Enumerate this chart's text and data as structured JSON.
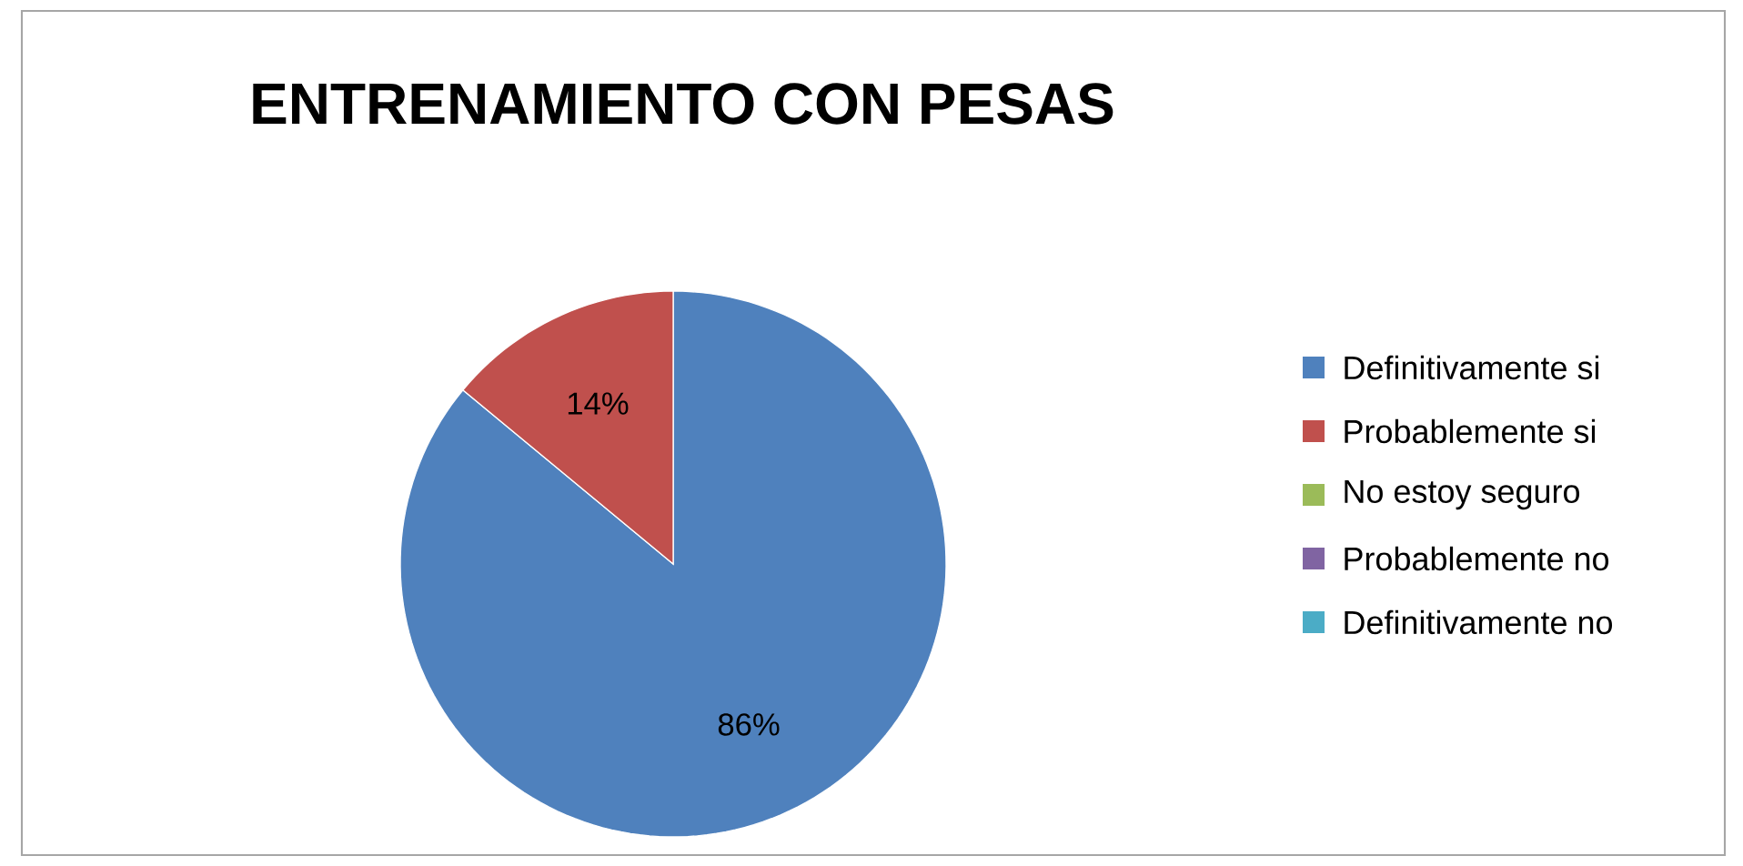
{
  "chart_data": {
    "type": "pie",
    "title": "ENTRENAMIENTO CON PESAS",
    "categories": [
      "Definitivamente si",
      "Probablemente si",
      "No estoy seguro",
      "Probablemente no",
      "Definitivamente no"
    ],
    "values": [
      86,
      14,
      0,
      0,
      0
    ],
    "colors": [
      "#4f81bd",
      "#c0504d",
      "#9bbb59",
      "#8064a2",
      "#4bacc6"
    ],
    "value_labels": [
      "86%",
      "14%",
      null,
      null,
      null
    ],
    "legend": "right"
  }
}
